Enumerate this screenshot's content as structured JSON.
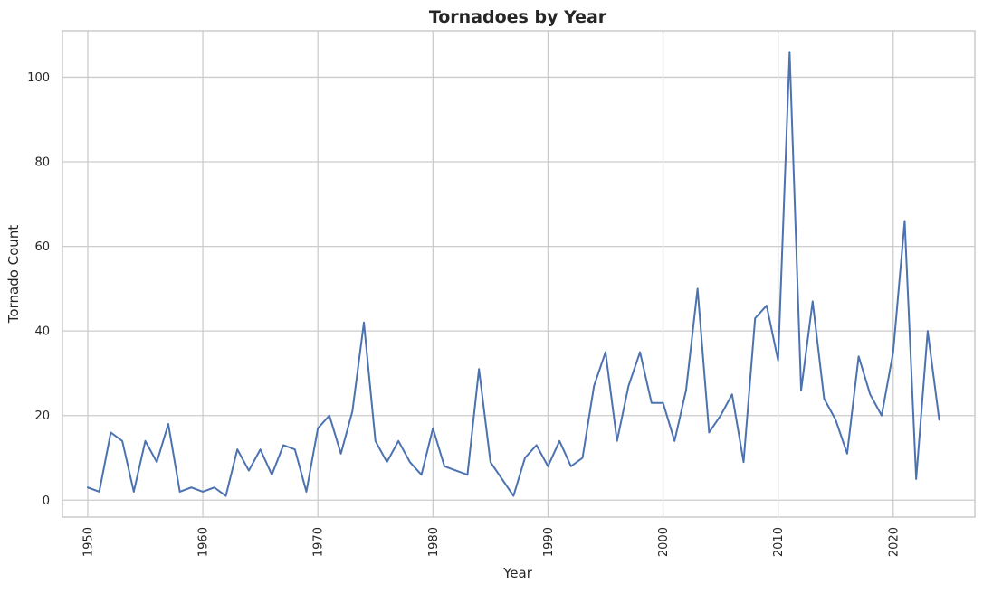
{
  "chart_data": {
    "type": "line",
    "title": "Tornadoes by Year",
    "xlabel": "Year",
    "ylabel": "Tornado Count",
    "xlim": [
      1947.8,
      2027.1
    ],
    "ylim": [
      -4,
      111
    ],
    "xticks": [
      1950,
      1960,
      1970,
      1980,
      1990,
      2000,
      2010,
      2020
    ],
    "xtick_labels": [
      "1950",
      "1960",
      "1970",
      "1980",
      "1990",
      "2000",
      "2010",
      "2020"
    ],
    "yticks": [
      0,
      20,
      40,
      60,
      80,
      100
    ],
    "ytick_labels": [
      "0",
      "20",
      "40",
      "60",
      "80",
      "100"
    ],
    "grid": true,
    "legend": "none",
    "colors": {
      "line": "#4c72b0",
      "grid": "#cccccc",
      "spine": "#cccccc",
      "text": "#262626",
      "background": "#ffffff"
    },
    "series": [
      {
        "x": [
          1950,
          1951,
          1952,
          1953,
          1954,
          1955,
          1956,
          1957,
          1958,
          1959,
          1960,
          1961,
          1962,
          1963,
          1964,
          1965,
          1966,
          1967,
          1968,
          1969,
          1970,
          1971,
          1972,
          1973,
          1974,
          1975,
          1976,
          1977,
          1978,
          1979,
          1980,
          1981,
          1982,
          1983,
          1984,
          1985,
          1987,
          1988,
          1989,
          1990,
          1991,
          1992,
          1993,
          1994,
          1995,
          1996,
          1997,
          1998,
          1999,
          2000,
          2001,
          2002,
          2003,
          2004,
          2005,
          2006,
          2007,
          2008,
          2009,
          2010,
          2011,
          2012,
          2013,
          2014,
          2015,
          2016,
          2017,
          2018,
          2019,
          2020,
          2021,
          2022,
          2023,
          2024
        ],
        "values": [
          3,
          2,
          16,
          14,
          2,
          14,
          9,
          18,
          2,
          3,
          2,
          3,
          1,
          12,
          7,
          12,
          6,
          13,
          12,
          2,
          17,
          20,
          11,
          21,
          42,
          14,
          9,
          14,
          9,
          6,
          17,
          8,
          7,
          6,
          31,
          9,
          1,
          10,
          13,
          8,
          14,
          8,
          10,
          27,
          35,
          14,
          27,
          35,
          23,
          23,
          14,
          26,
          50,
          16,
          20,
          25,
          9,
          43,
          46,
          33,
          106,
          26,
          47,
          24,
          19,
          11,
          34,
          25,
          20,
          35,
          66,
          5,
          40,
          19
        ]
      }
    ]
  }
}
